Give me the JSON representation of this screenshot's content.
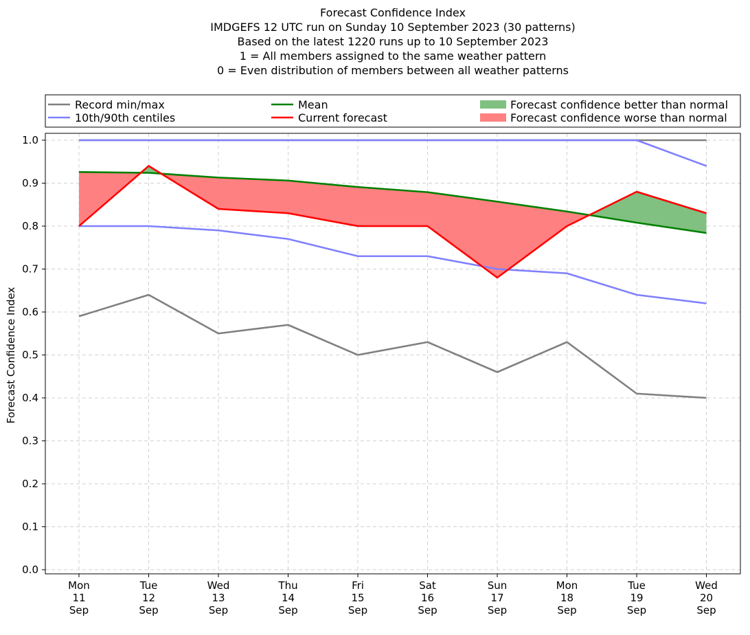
{
  "chart_data": {
    "type": "line",
    "title_lines": [
      "Forecast Confidence Index",
      "IMDGEFS 12 UTC run on Sunday 10 September 2023 (30 patterns)",
      "Based on the latest 1220 runs up to 10 September 2023",
      "1 = All members assigned to the same weather pattern",
      "0 = Even distribution of members between all weather patterns"
    ],
    "ylabel": "Forecast Confidence Index",
    "xlabel": "",
    "ylim": [
      0.0,
      1.0
    ],
    "yticks": [
      "0.0",
      "0.1",
      "0.2",
      "0.3",
      "0.4",
      "0.5",
      "0.6",
      "0.7",
      "0.8",
      "0.9",
      "1.0"
    ],
    "grid": true,
    "legend_position": "top",
    "categories": [
      [
        "Mon",
        "11",
        "Sep"
      ],
      [
        "Tue",
        "12",
        "Sep"
      ],
      [
        "Wed",
        "13",
        "Sep"
      ],
      [
        "Thu",
        "14",
        "Sep"
      ],
      [
        "Fri",
        "15",
        "Sep"
      ],
      [
        "Sat",
        "16",
        "Sep"
      ],
      [
        "Sun",
        "17",
        "Sep"
      ],
      [
        "Mon",
        "18",
        "Sep"
      ],
      [
        "Tue",
        "19",
        "Sep"
      ],
      [
        "Wed",
        "20",
        "Sep"
      ]
    ],
    "series": {
      "record_min": [
        0.59,
        0.64,
        0.55,
        0.57,
        0.5,
        0.53,
        0.46,
        0.53,
        0.41,
        0.4
      ],
      "record_max": [
        1.0,
        1.0,
        1.0,
        1.0,
        1.0,
        1.0,
        1.0,
        1.0,
        1.0,
        1.0
      ],
      "centile_10": [
        0.8,
        0.8,
        0.79,
        0.77,
        0.73,
        0.73,
        0.7,
        0.69,
        0.64,
        0.62
      ],
      "centile_90": [
        1.0,
        1.0,
        1.0,
        1.0,
        1.0,
        1.0,
        1.0,
        1.0,
        1.0,
        0.94
      ],
      "mean": [
        0.926,
        0.924,
        0.913,
        0.906,
        0.891,
        0.879,
        0.857,
        0.834,
        0.808,
        0.784
      ],
      "current": [
        0.8,
        0.94,
        0.84,
        0.83,
        0.8,
        0.8,
        0.68,
        0.8,
        0.88,
        0.83
      ]
    },
    "legend": {
      "record": "Record min/max",
      "centiles": "10th/90th centiles",
      "mean": "Mean",
      "current": "Current forecast",
      "better": "Forecast confidence better than normal",
      "worse": "Forecast confidence worse than normal"
    },
    "colors": {
      "record": "#808080",
      "centiles": "#8080ff",
      "mean": "#008000",
      "current": "#ff0000",
      "better": "#80c080",
      "worse": "#ff8080",
      "grid": "#d0d0d0"
    }
  }
}
